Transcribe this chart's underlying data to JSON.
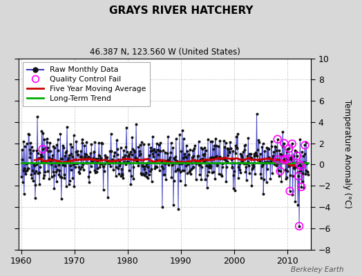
{
  "title": "GRAYS RIVER HATCHERY",
  "subtitle": "46.387 N, 123.560 W (United States)",
  "ylabel": "Temperature Anomaly (°C)",
  "watermark": "Berkeley Earth",
  "xlim": [
    1959.5,
    2014.5
  ],
  "ylim": [
    -8,
    10
  ],
  "yticks": [
    -8,
    -6,
    -4,
    -2,
    0,
    2,
    4,
    6,
    8,
    10
  ],
  "xticks": [
    1960,
    1970,
    1980,
    1990,
    2000,
    2010
  ],
  "fig_bg_color": "#d8d8d8",
  "plot_bg_color": "#ffffff",
  "raw_line_color": "#3333bb",
  "raw_dot_color": "#111111",
  "moving_avg_color": "#cc0000",
  "trend_color": "#00aa00",
  "qc_fail_color": "#ff00ff",
  "grid_color": "#cccccc",
  "legend_labels": [
    "Raw Monthly Data",
    "Quality Control Fail",
    "Five Year Moving Average",
    "Long-Term Trend"
  ]
}
